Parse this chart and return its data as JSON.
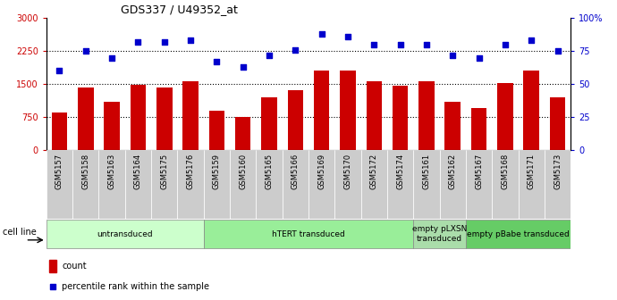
{
  "title": "GDS337 / U49352_at",
  "samples": [
    "GSM5157",
    "GSM5158",
    "GSM5163",
    "GSM5164",
    "GSM5175",
    "GSM5176",
    "GSM5159",
    "GSM5160",
    "GSM5165",
    "GSM5166",
    "GSM5169",
    "GSM5170",
    "GSM5172",
    "GSM5174",
    "GSM5161",
    "GSM5162",
    "GSM5167",
    "GSM5168",
    "GSM5171",
    "GSM5173"
  ],
  "counts": [
    850,
    1430,
    1100,
    1480,
    1420,
    1570,
    900,
    750,
    1200,
    1350,
    1800,
    1800,
    1570,
    1460,
    1570,
    1100,
    950,
    1520,
    1800,
    1200
  ],
  "percentiles": [
    60,
    75,
    70,
    82,
    82,
    83,
    67,
    63,
    72,
    76,
    88,
    86,
    80,
    80,
    80,
    72,
    70,
    80,
    83,
    75
  ],
  "groups": [
    {
      "label": "untransduced",
      "start": 0,
      "end": 6,
      "color": "#ccffcc"
    },
    {
      "label": "hTERT transduced",
      "start": 6,
      "end": 14,
      "color": "#99ee99"
    },
    {
      "label": "empty pLXSN\ntransduced",
      "start": 14,
      "end": 16,
      "color": "#aaddaa"
    },
    {
      "label": "empty pBabe transduced",
      "start": 16,
      "end": 20,
      "color": "#66cc66"
    }
  ],
  "bar_color": "#cc0000",
  "dot_color": "#0000cc",
  "left_ylim": [
    0,
    3000
  ],
  "right_ylim": [
    0,
    100
  ],
  "left_yticks": [
    0,
    750,
    1500,
    2250,
    3000
  ],
  "right_yticks": [
    0,
    25,
    50,
    75,
    100
  ],
  "right_yticklabels": [
    "0",
    "25",
    "50",
    "75",
    "100%"
  ],
  "dotted_line_values": [
    750,
    1500,
    2250
  ],
  "background_color": "#ffffff",
  "label_bg_color": "#cccccc"
}
